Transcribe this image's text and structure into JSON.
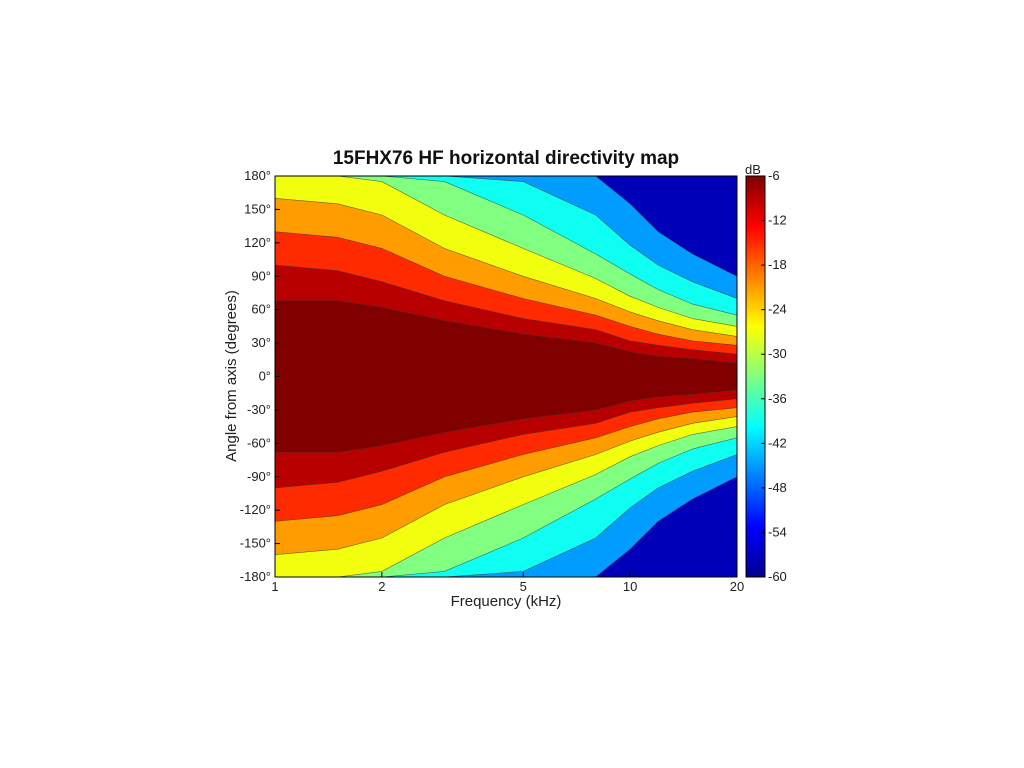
{
  "chart_data": {
    "type": "heatmap",
    "title": "15FHX76 HF horizontal directivity map",
    "xlabel": "Frequency (kHz)",
    "ylabel": "Angle from axis (degrees)",
    "x_scale": "log",
    "xlim": [
      1,
      20
    ],
    "ylim": [
      -180,
      180
    ],
    "x_ticks": [
      1,
      2,
      5,
      10,
      20
    ],
    "x_tick_labels": [
      "1",
      "2",
      "5",
      "10",
      "20"
    ],
    "y_ticks": [
      180,
      150,
      120,
      90,
      60,
      30,
      0,
      -30,
      -60,
      -90,
      -120,
      -150,
      -180
    ],
    "y_tick_labels": [
      "180°",
      "150°",
      "120°",
      "90°",
      "60°",
      "30°",
      "0°",
      "-30°",
      "-60°",
      "-90°",
      "-120°",
      "-150°",
      "-180°"
    ],
    "colorbar": {
      "label": "dB",
      "range": [
        -60,
        -6
      ],
      "ticks": [
        -6,
        -12,
        -18,
        -24,
        -30,
        -36,
        -42,
        -48,
        -54,
        -60
      ],
      "tick_labels": [
        "-6",
        "-12",
        "-18",
        "-24",
        "-30",
        "-36",
        "-42",
        "-48",
        "-54",
        "-60"
      ],
      "colormap": "jet"
    },
    "frequencies_khz": [
      1,
      1.5,
      2,
      3,
      5,
      8,
      10,
      12,
      15,
      20
    ],
    "contour_boundaries_deg": [
      {
        "level_db": -6,
        "angles": [
          68,
          68,
          62,
          50,
          38,
          30,
          22,
          18,
          16,
          12
        ]
      },
      {
        "level_db": -12,
        "angles": [
          100,
          95,
          85,
          68,
          52,
          42,
          32,
          28,
          24,
          20
        ]
      },
      {
        "level_db": -18,
        "angles": [
          130,
          125,
          115,
          90,
          70,
          55,
          45,
          38,
          32,
          28
        ]
      },
      {
        "level_db": -24,
        "angles": [
          160,
          155,
          145,
          115,
          90,
          70,
          58,
          50,
          42,
          36
        ]
      },
      {
        "level_db": -30,
        "angles": [
          180,
          180,
          175,
          145,
          115,
          88,
          72,
          62,
          52,
          45
        ]
      },
      {
        "level_db": -36,
        "angles": [
          180,
          180,
          180,
          175,
          145,
          110,
          92,
          78,
          65,
          55
        ]
      },
      {
        "level_db": -42,
        "angles": [
          180,
          180,
          180,
          180,
          175,
          145,
          118,
          100,
          85,
          70
        ]
      },
      {
        "level_db": -48,
        "angles": [
          180,
          180,
          180,
          180,
          180,
          180,
          155,
          130,
          110,
          90
        ]
      }
    ]
  }
}
